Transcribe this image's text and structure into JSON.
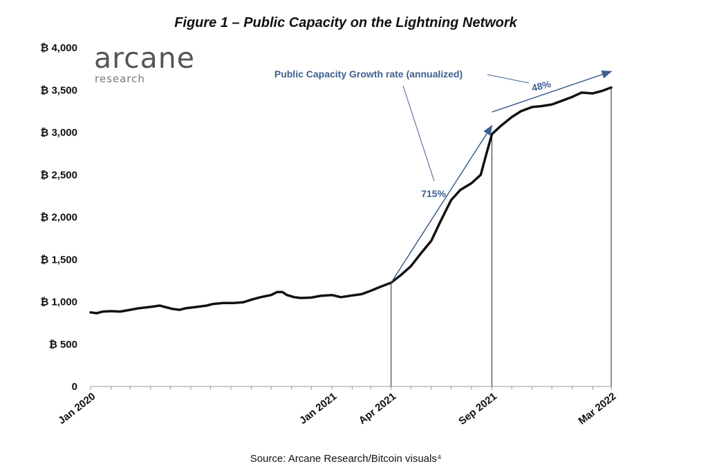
{
  "title": "Figure 1 – Public Capacity on the Lightning Network",
  "logo": {
    "word": "arcane",
    "sub": "research"
  },
  "source": "Source: Arcane Research/Bitcoin visuals⁴",
  "colors": {
    "line": "#111111",
    "annotation": "#3d5f8f",
    "axis": "#999999"
  },
  "chart_data": {
    "type": "line",
    "title": "Figure 1 – Public Capacity on the Lightning Network",
    "xlabel": "",
    "ylabel": "",
    "x_unit": "months since Jan 2020",
    "ylim": [
      0,
      4000
    ],
    "y_ticks": [
      0,
      500,
      1000,
      1500,
      2000,
      2500,
      3000,
      3500,
      4000
    ],
    "y_tick_labels": [
      "0",
      "₿ 500",
      "₿ 1,000",
      "₿ 1,500",
      "₿ 2,000",
      "₿ 2,500",
      "₿ 3,000",
      "₿ 3,500",
      "₿ 4,000"
    ],
    "x_tick_labels": [
      {
        "label": "Jan 2020",
        "date": "2020-01-01"
      },
      {
        "label": "Jan 2021",
        "date": "2021-01-01"
      },
      {
        "label": "Apr 2021",
        "date": "2021-04-01"
      },
      {
        "label": "Sep 2021",
        "date": "2021-09-01"
      },
      {
        "label": "Mar 2022",
        "date": "2022-03-01"
      }
    ],
    "series": [
      {
        "points": [
          [
            "2020-01-01",
            875
          ],
          [
            "2020-01-10",
            865
          ],
          [
            "2020-01-20",
            885
          ],
          [
            "2020-02-01",
            890
          ],
          [
            "2020-02-15",
            885
          ],
          [
            "2020-03-01",
            905
          ],
          [
            "2020-03-15",
            925
          ],
          [
            "2020-04-01",
            940
          ],
          [
            "2020-04-15",
            955
          ],
          [
            "2020-04-25",
            935
          ],
          [
            "2020-05-05",
            915
          ],
          [
            "2020-05-15",
            905
          ],
          [
            "2020-05-25",
            925
          ],
          [
            "2020-06-10",
            940
          ],
          [
            "2020-06-25",
            955
          ],
          [
            "2020-07-05",
            975
          ],
          [
            "2020-07-20",
            985
          ],
          [
            "2020-08-05",
            985
          ],
          [
            "2020-08-20",
            995
          ],
          [
            "2020-09-01",
            1025
          ],
          [
            "2020-09-15",
            1055
          ],
          [
            "2020-10-01",
            1080
          ],
          [
            "2020-10-10",
            1115
          ],
          [
            "2020-10-18",
            1115
          ],
          [
            "2020-10-25",
            1080
          ],
          [
            "2020-11-05",
            1055
          ],
          [
            "2020-11-15",
            1045
          ],
          [
            "2020-12-01",
            1050
          ],
          [
            "2020-12-15",
            1070
          ],
          [
            "2021-01-01",
            1080
          ],
          [
            "2021-01-15",
            1055
          ],
          [
            "2021-02-01",
            1075
          ],
          [
            "2021-02-15",
            1090
          ],
          [
            "2021-03-01",
            1130
          ],
          [
            "2021-03-15",
            1175
          ],
          [
            "2021-04-01",
            1225
          ],
          [
            "2021-04-15",
            1310
          ],
          [
            "2021-05-01",
            1420
          ],
          [
            "2021-05-15",
            1560
          ],
          [
            "2021-06-01",
            1720
          ],
          [
            "2021-06-15",
            1950
          ],
          [
            "2021-07-01",
            2200
          ],
          [
            "2021-07-15",
            2320
          ],
          [
            "2021-08-01",
            2400
          ],
          [
            "2021-08-15",
            2500
          ],
          [
            "2021-08-22",
            2700
          ],
          [
            "2021-09-01",
            2980
          ],
          [
            "2021-09-15",
            3080
          ],
          [
            "2021-10-01",
            3180
          ],
          [
            "2021-10-15",
            3250
          ],
          [
            "2021-11-01",
            3300
          ],
          [
            "2021-11-15",
            3310
          ],
          [
            "2021-12-01",
            3330
          ],
          [
            "2021-12-15",
            3370
          ],
          [
            "2022-01-01",
            3420
          ],
          [
            "2022-01-15",
            3470
          ],
          [
            "2022-02-01",
            3460
          ],
          [
            "2022-02-15",
            3490
          ],
          [
            "2022-03-01",
            3530
          ]
        ]
      }
    ],
    "markers": [
      {
        "date": "2021-04-01",
        "value": 1225
      },
      {
        "date": "2021-09-01",
        "value": 2980
      },
      {
        "date": "2022-03-01",
        "value": 3530
      }
    ],
    "annotations": {
      "heading": "Public Capacity Growth rate (annualized)",
      "rate1": "715%",
      "rate2": "48%"
    },
    "grid": false
  }
}
